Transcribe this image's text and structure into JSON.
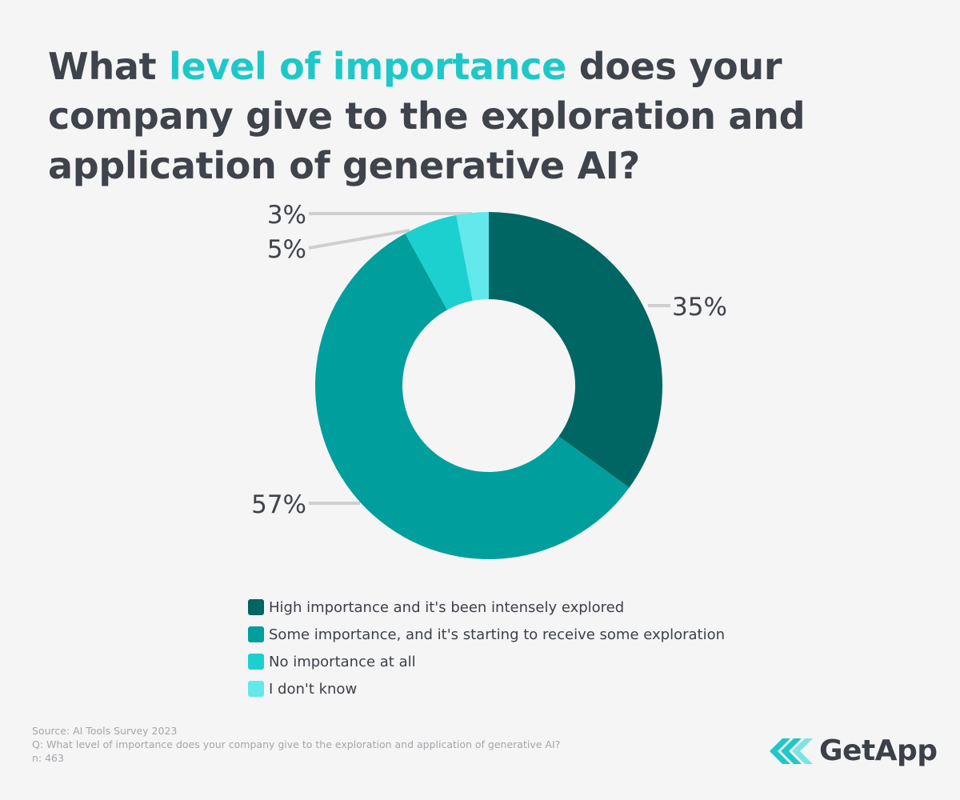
{
  "title": {
    "part1": "What ",
    "highlight": "level of importance",
    "part2": " does your company give to the exploration and application of generative AI?",
    "highlight_color": "#1ec8c8"
  },
  "chart_data": {
    "type": "pie",
    "donut": true,
    "start": "12 o'clock, clockwise",
    "categories": [
      "High importance and it's been intensely explored",
      "Some importance, and it's starting to receive some exploration",
      "No importance at all",
      "I don't know"
    ],
    "values": [
      35,
      57,
      5,
      3
    ],
    "labels": [
      "35%",
      "57%",
      "5%",
      "3%"
    ],
    "colors": [
      "#006663",
      "#009e9c",
      "#1cd0d0",
      "#63e8ec"
    ],
    "legend": "bottom"
  },
  "footer": {
    "source": "Source: AI Tools Survey 2023",
    "question": "Q: What level of importance does your company give to the exploration and application of generative AI?",
    "n": "n: 463"
  },
  "logo": {
    "text": "GetApp",
    "icon": "getapp-chevrons-icon",
    "colors": [
      "#1ec8c8",
      "#7ee3e3"
    ]
  }
}
